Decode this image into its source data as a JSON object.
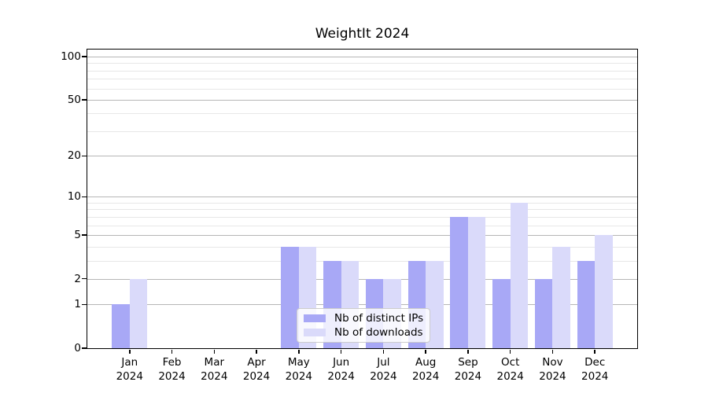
{
  "chart_data": {
    "type": "bar",
    "title": "WeightIt 2024",
    "categories": [
      "Jan",
      "Feb",
      "Mar",
      "Apr",
      "May",
      "Jun",
      "Jul",
      "Aug",
      "Sep",
      "Oct",
      "Nov",
      "Dec"
    ],
    "category_year": "2024",
    "series": [
      {
        "name": "Nb of distinct IPs",
        "color": "#a8a8f6",
        "values": [
          1,
          0,
          0,
          0,
          4,
          3,
          2,
          3,
          7,
          2,
          2,
          3
        ]
      },
      {
        "name": "Nb of downloads",
        "color": "#dadafa",
        "values": [
          2,
          0,
          0,
          0,
          4,
          3,
          2,
          3,
          7,
          9,
          4,
          5
        ]
      }
    ],
    "xlabel": "",
    "ylabel": "",
    "yscale": "log1p",
    "ylim": [
      0,
      112
    ],
    "y_major_ticks": [
      0,
      1,
      2,
      5,
      10,
      20,
      50,
      100
    ],
    "y_minor_ticks": [
      3,
      4,
      6,
      7,
      8,
      9,
      30,
      40,
      60,
      70,
      80,
      90
    ],
    "grid": true,
    "legend_position": "bottom-center-inside"
  },
  "colors": {
    "bar_distinct_ips": "#a8a8f6",
    "bar_downloads": "#dadafa",
    "grid_major": "#b6b6b6",
    "grid_minor": "#e7e7e7",
    "axis": "#000000",
    "legend_border": "#cccccc",
    "background": "#ffffff"
  }
}
